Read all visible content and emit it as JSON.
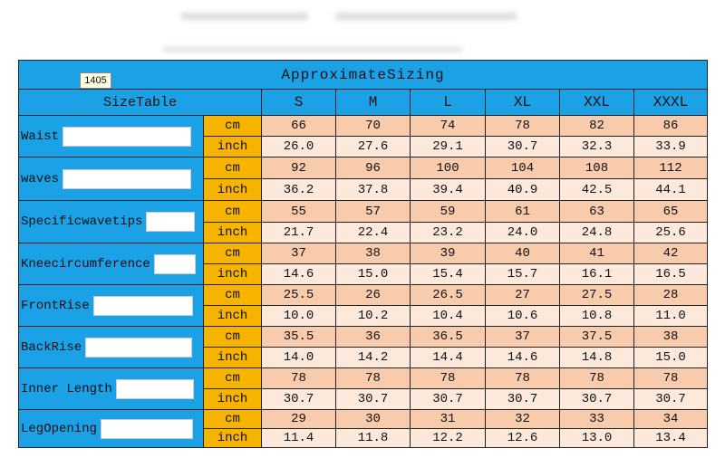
{
  "header": {
    "badge": "1405",
    "title": "ApproximateSizing"
  },
  "table": {
    "corner": "SizeTable",
    "sizes": [
      "S",
      "M",
      "L",
      "XL",
      "XXL",
      "XXXL"
    ],
    "rows": [
      {
        "label": "Waist",
        "units": [
          "cm",
          "inch"
        ],
        "values": [
          [
            "66",
            "70",
            "74",
            "78",
            "82",
            "86"
          ],
          [
            "26.0",
            "27.6",
            "29.1",
            "30.7",
            "32.3",
            "33.9"
          ]
        ]
      },
      {
        "label": "waves",
        "units": [
          "cm",
          "inch"
        ],
        "values": [
          [
            "92",
            "96",
            "100",
            "104",
            "108",
            "112"
          ],
          [
            "36.2",
            "37.8",
            "39.4",
            "40.9",
            "42.5",
            "44.1"
          ]
        ]
      },
      {
        "label": "Specificwavetips",
        "units": [
          "cm",
          "inch"
        ],
        "values": [
          [
            "55",
            "57",
            "59",
            "61",
            "63",
            "65"
          ],
          [
            "21.7",
            "22.4",
            "23.2",
            "24.0",
            "24.8",
            "25.6"
          ]
        ]
      },
      {
        "label": "Kneecircumference",
        "units": [
          "cm",
          "inch"
        ],
        "values": [
          [
            "37",
            "38",
            "39",
            "40",
            "41",
            "42"
          ],
          [
            "14.6",
            "15.0",
            "15.4",
            "15.7",
            "16.1",
            "16.5"
          ]
        ]
      },
      {
        "label": "FrontRise",
        "units": [
          "cm",
          "inch"
        ],
        "values": [
          [
            "25.5",
            "26",
            "26.5",
            "27",
            "27.5",
            "28"
          ],
          [
            "10.0",
            "10.2",
            "10.4",
            "10.6",
            "10.8",
            "11.0"
          ]
        ]
      },
      {
        "label": "BackRise",
        "units": [
          "cm",
          "inch"
        ],
        "values": [
          [
            "35.5",
            "36",
            "36.5",
            "37",
            "37.5",
            "38"
          ],
          [
            "14.0",
            "14.2",
            "14.4",
            "14.6",
            "14.8",
            "15.0"
          ]
        ]
      },
      {
        "label": "Inner Length",
        "units": [
          "cm",
          "inch"
        ],
        "values": [
          [
            "78",
            "78",
            "78",
            "78",
            "78",
            "78"
          ],
          [
            "30.7",
            "30.7",
            "30.7",
            "30.7",
            "30.7",
            "30.7"
          ]
        ]
      },
      {
        "label": "LegOpening",
        "units": [
          "cm",
          "inch"
        ],
        "values": [
          [
            "29",
            "30",
            "31",
            "32",
            "33",
            "34"
          ],
          [
            "11.4",
            "11.8",
            "12.2",
            "12.6",
            "13.0",
            "13.4"
          ]
        ]
      }
    ]
  }
}
